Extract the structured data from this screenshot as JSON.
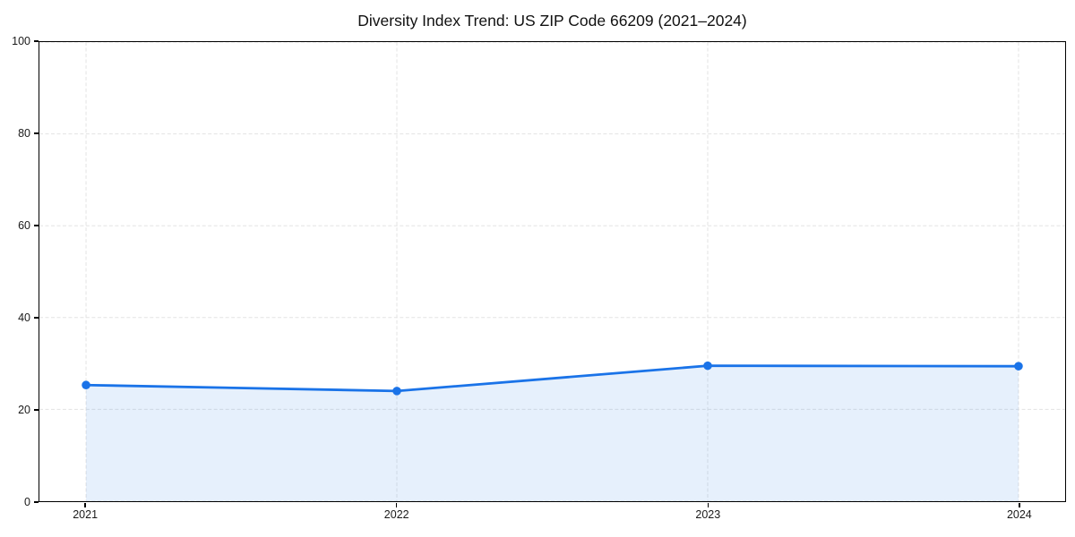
{
  "chart_data": {
    "type": "area",
    "title": "Diversity Index Trend: US ZIP Code 66209 (2021–2024)",
    "x": [
      2021,
      2022,
      2023,
      2024
    ],
    "series": [
      {
        "name": "Diversity Index",
        "values": [
          25.3,
          24.0,
          29.5,
          29.4
        ]
      }
    ],
    "xlabel": "",
    "ylabel": "",
    "ylim": [
      0,
      100
    ],
    "yticks": [
      0,
      20,
      40,
      60,
      80,
      100
    ],
    "xticks": [
      2021,
      2022,
      2023,
      2024
    ],
    "x_margin_frac": 0.05,
    "grid": true,
    "grid_linestyle": "dashed",
    "legend_position": "none",
    "marker": "circle",
    "colors": {
      "line": "#1a73e8",
      "marker": "#1a73e8",
      "fill": "rgba(26,115,232,0.11)",
      "grid": "#e3e3e3",
      "axis": "#000000",
      "tick_label": "#1a1a1a",
      "title": "#111111",
      "background": "#ffffff"
    }
  }
}
